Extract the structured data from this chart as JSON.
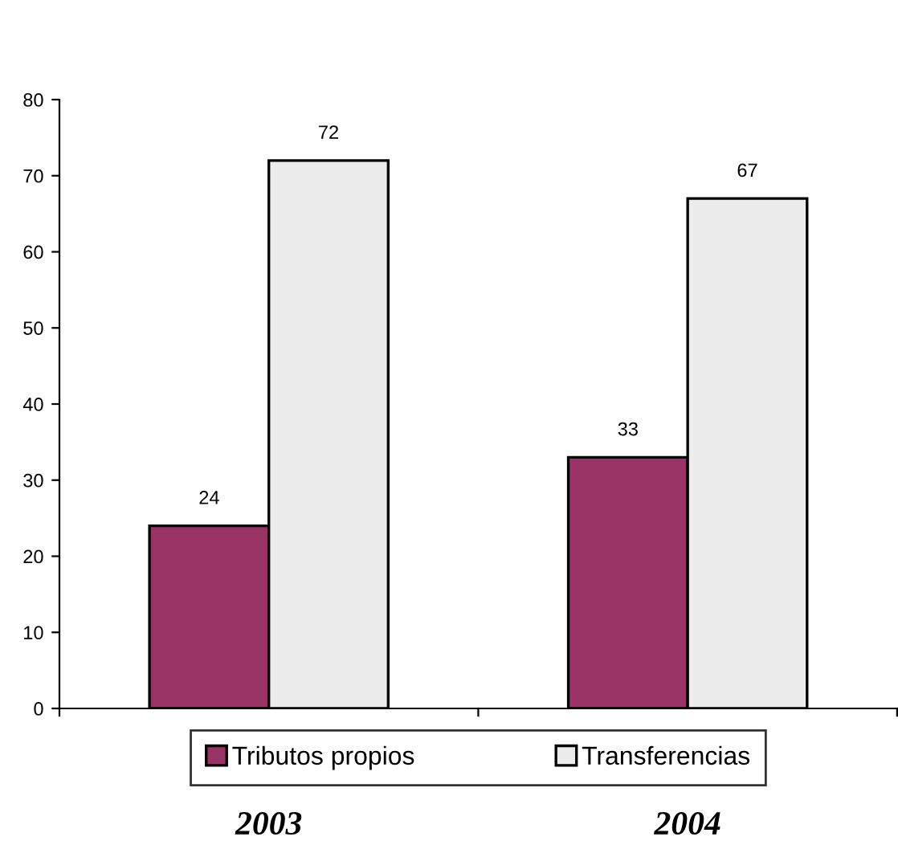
{
  "chart_data": {
    "type": "bar",
    "categories": [
      "2003",
      "2004"
    ],
    "series": [
      {
        "name": "Tributos propios",
        "color": "#993366",
        "values": [
          24,
          33
        ]
      },
      {
        "name": "Transferencias",
        "color": "#ececec",
        "values": [
          72,
          67
        ]
      }
    ],
    "ylim": [
      0,
      80
    ],
    "yticks": [
      0,
      10,
      20,
      30,
      40,
      50,
      60,
      70,
      80
    ],
    "data_labels": true,
    "grid": false,
    "legend": "bottom"
  }
}
